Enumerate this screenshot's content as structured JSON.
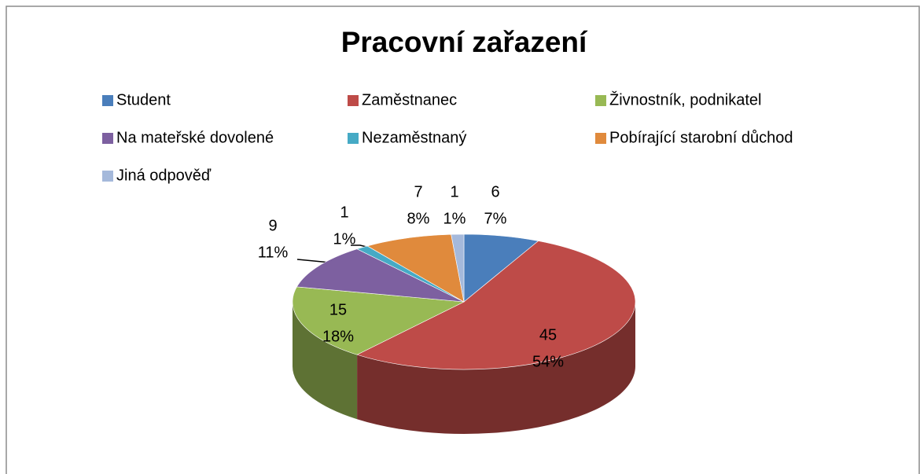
{
  "chart_data": {
    "type": "pie3d",
    "title": "Pracovní zařazení",
    "categories": [
      "Student",
      "Zaměstnanec",
      "Živnostník, podnikatel",
      "Na mateřské dovolené",
      "Nezaměstnaný",
      "Pobírající starobní důchod",
      "Jiná odpověď"
    ],
    "values": [
      6,
      45,
      15,
      9,
      1,
      7,
      1
    ],
    "percent_labels": [
      "7%",
      "54%",
      "18%",
      "11%",
      "1%",
      "8%",
      "1%"
    ],
    "colors": [
      "#4a7ebb",
      "#be4b48",
      "#98b954",
      "#7d60a0",
      "#46aac5",
      "#e08a3c",
      "#a5b9db"
    ],
    "legend": "top"
  }
}
